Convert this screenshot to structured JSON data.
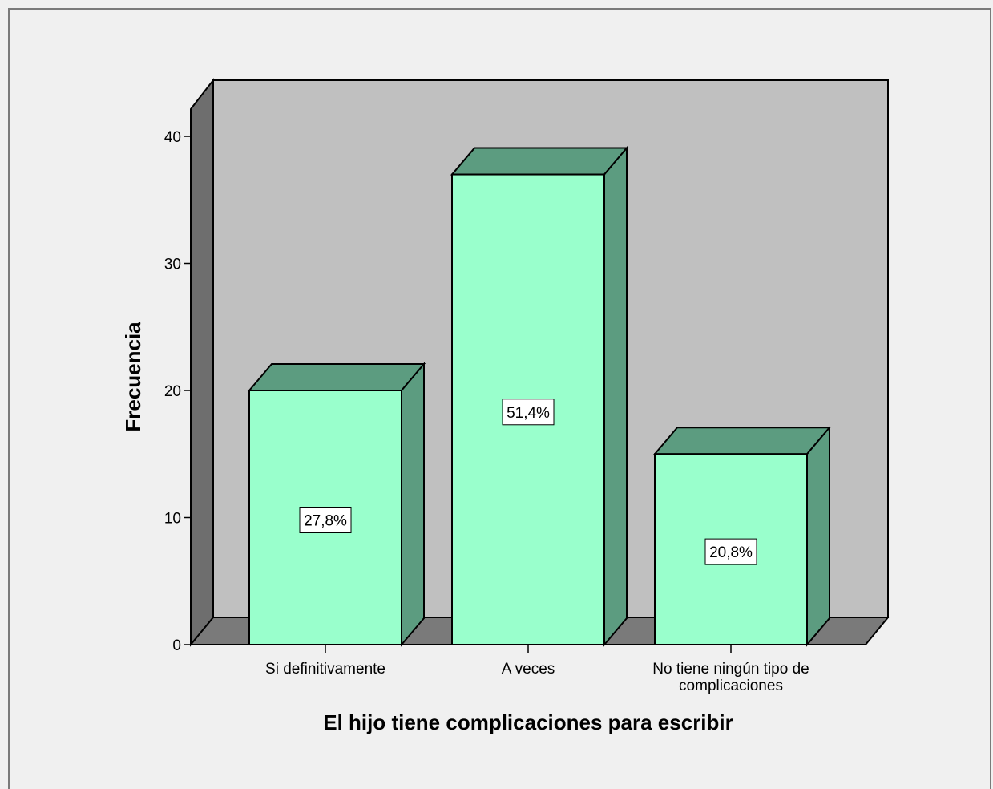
{
  "chart_data": {
    "type": "bar",
    "style": "3d",
    "categories": [
      "Si definitivamente",
      "A veces",
      "No tiene ningún tipo de complicaciones"
    ],
    "category_lines": [
      [
        "Si definitivamente"
      ],
      [
        "A veces"
      ],
      [
        "No tiene ningún tipo de",
        "complicaciones"
      ]
    ],
    "values": [
      20,
      37,
      15
    ],
    "percent_labels": [
      "27,8%",
      "51,4%",
      "20,8%"
    ],
    "xlabel": "El hijo tiene complicaciones para escribir",
    "ylabel": "Frecuencia",
    "ylim": [
      0,
      40
    ],
    "yticks": [
      0,
      10,
      20,
      30,
      40
    ],
    "grid": false,
    "legend": "none",
    "colors": {
      "bar_front": "#99ffcc",
      "bar_side": "#5c9c80",
      "wall": "#c0c0c0",
      "wall_side": "#6e6e6e",
      "floor": "#7a7a7a",
      "background": "#f0f0f0"
    }
  }
}
